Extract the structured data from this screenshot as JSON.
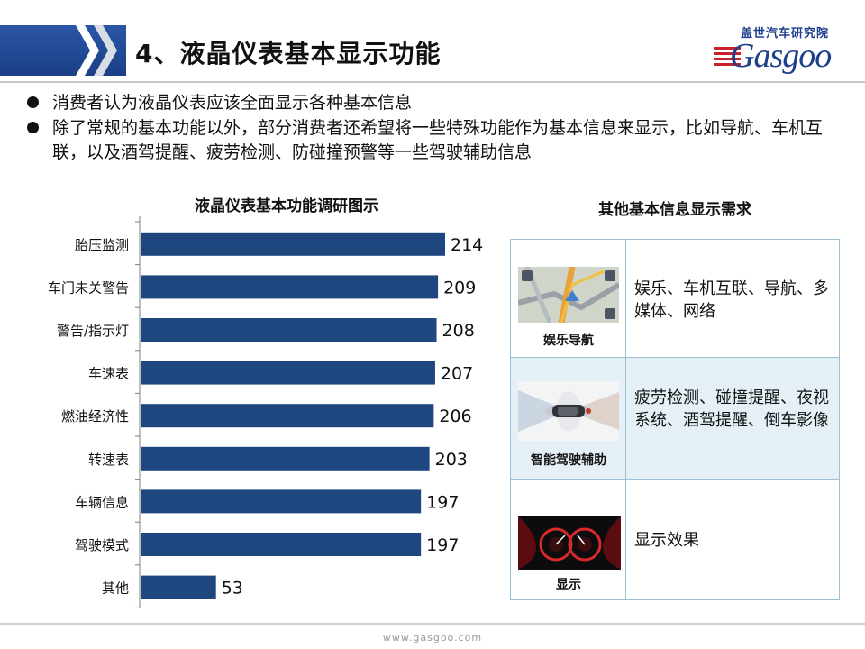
{
  "header": {
    "title": "4、液晶仪表基本显示功能",
    "logo_cn": "盖世汽车研究院",
    "logo_en": "Gasgoo",
    "band_color": "#1f4a97"
  },
  "bullets": [
    "消费者认为液晶仪表应该全面显示各种基本信息",
    "除了常规的基本功能以外，部分消费者还希望将一些特殊功能作为基本信息来显示，比如导航、车机互联，以及酒驾提醒、疲劳检测、防碰撞预警等一些驾驶辅助信息"
  ],
  "chart_data": {
    "type": "bar",
    "orientation": "horizontal",
    "title": "液晶仪表基本功能调研图示",
    "categories": [
      "胎压监测",
      "车门未关警告",
      "警告/指示灯",
      "车速表",
      "燃油经济性",
      "转速表",
      "车辆信息",
      "驾驶模式",
      "其他"
    ],
    "values": [
      214,
      209,
      208,
      207,
      206,
      203,
      197,
      197,
      53
    ],
    "xlim": [
      0,
      214
    ],
    "bar_color": "#1f477f",
    "grid": false,
    "legend": "none",
    "data_labels": true
  },
  "table": {
    "title": "其他基本信息显示需求",
    "rows": [
      {
        "caption": "娱乐导航",
        "icon": "navigation-map-icon",
        "description": "娱乐、车机互联、导航、多媒体、网络"
      },
      {
        "caption": "智能驾驶辅助",
        "icon": "driver-assist-sensor-icon",
        "description": "疲劳检测、碰撞提醒、夜视系统、酒驾提醒、倒车影像"
      },
      {
        "caption": "显示",
        "icon": "instrument-cluster-icon",
        "description": "显示效果"
      }
    ]
  },
  "footer": {
    "url": "www.gasgoo.com"
  }
}
